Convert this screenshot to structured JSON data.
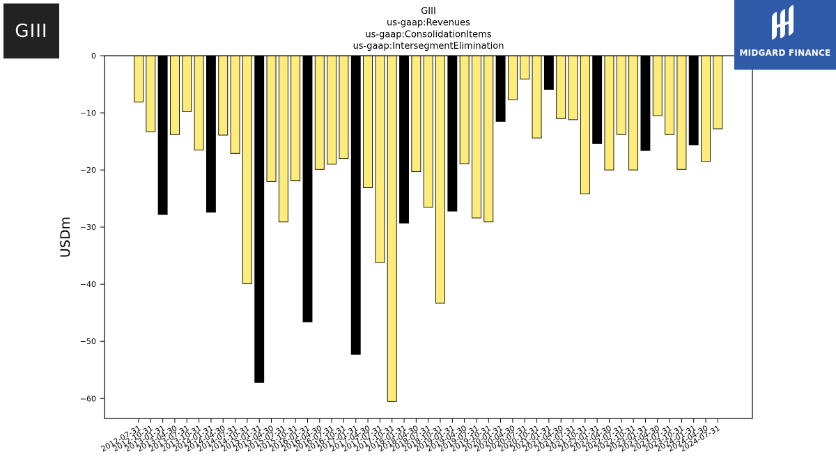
{
  "logos": {
    "company": "GIII",
    "brand": "MIDGARD FINANCE"
  },
  "chart_data": {
    "type": "bar",
    "title": "GIII\nus-gaap:Revenues\nus-gaap:ConsolidationItems\nus-gaap:IntersegmentElimination",
    "ylabel": "USDm",
    "xlabel": "",
    "ylim": [
      -63.5,
      0
    ],
    "yticks": [
      0,
      -10,
      -20,
      -30,
      -40,
      -50,
      -60
    ],
    "grid": false,
    "colors": {
      "quarter": "#fdec7a",
      "fiscal_year_end": "#000000",
      "edge": "#000000"
    },
    "categories": [
      "2012-07-31",
      "2012-10-31",
      "2013-01-31",
      "2013-04-30",
      "2013-07-31",
      "2013-10-31",
      "2014-01-31",
      "2014-04-30",
      "2014-07-31",
      "2014-10-31",
      "2015-01-31",
      "2015-04-30",
      "2015-07-31",
      "2015-10-31",
      "2016-01-31",
      "2016-04-30",
      "2016-07-31",
      "2016-10-31",
      "2017-01-31",
      "2017-04-30",
      "2017-07-31",
      "2017-10-31",
      "2018-01-31",
      "2018-04-30",
      "2018-07-31",
      "2018-10-31",
      "2019-01-31",
      "2019-04-30",
      "2019-07-31",
      "2019-10-31",
      "2020-01-31",
      "2020-04-30",
      "2020-07-31",
      "2020-10-31",
      "2021-01-31",
      "2021-04-30",
      "2021-07-31",
      "2021-10-31",
      "2022-01-31",
      "2022-04-30",
      "2022-07-31",
      "2022-10-31",
      "2023-01-31",
      "2023-04-30",
      "2023-07-31",
      "2023-10-31",
      "2024-01-31",
      "2024-04-30",
      "2024-07-31"
    ],
    "values": [
      -8.1,
      -13.3,
      -27.8,
      -13.8,
      -9.8,
      -16.5,
      -27.4,
      -13.9,
      -17.1,
      -39.9,
      -57.2,
      -22.0,
      -29.1,
      -21.9,
      -46.6,
      -19.9,
      -19.0,
      -18.0,
      -52.3,
      -23.1,
      -36.2,
      -60.5,
      -29.3,
      -20.3,
      -26.5,
      -43.3,
      -27.2,
      -18.9,
      -28.4,
      -29.1,
      -11.5,
      -7.7,
      -4.1,
      -14.4,
      -5.9,
      -11.0,
      -11.2,
      -24.2,
      -15.4,
      -20.0,
      -13.8,
      -20.0,
      -16.6,
      -10.5,
      -13.8,
      -19.9,
      -15.6,
      -18.5,
      -12.8
    ],
    "fiscal_year_end_flags": [
      false,
      false,
      true,
      false,
      false,
      false,
      true,
      false,
      false,
      false,
      true,
      false,
      false,
      false,
      true,
      false,
      false,
      false,
      true,
      false,
      false,
      false,
      true,
      false,
      false,
      false,
      true,
      false,
      false,
      false,
      true,
      false,
      false,
      false,
      true,
      false,
      false,
      false,
      true,
      false,
      false,
      false,
      true,
      false,
      false,
      false,
      true,
      false,
      false
    ]
  }
}
